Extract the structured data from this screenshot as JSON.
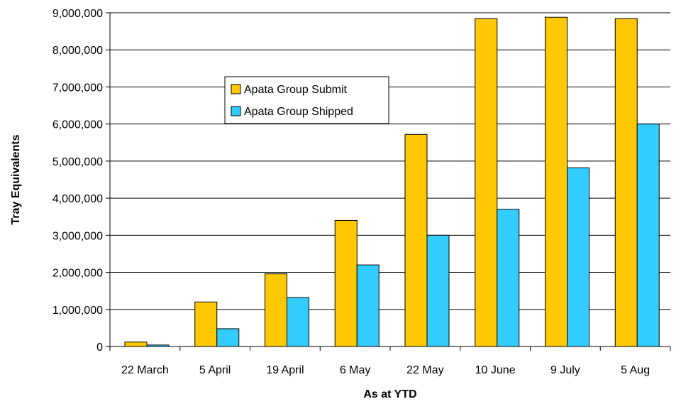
{
  "chart_data": {
    "type": "bar",
    "title": "",
    "xlabel": "As at YTD",
    "ylabel": "Tray Equivalents",
    "categories": [
      "22 March",
      "5 April",
      "19 April",
      "6 May",
      "22 May",
      "10 June",
      "9 July",
      "5 Aug"
    ],
    "series": [
      {
        "name": "Apata Group Submit",
        "color": "#FFC800",
        "values": [
          120000,
          1200000,
          1960000,
          3400000,
          5720000,
          8840000,
          8880000,
          8840000
        ]
      },
      {
        "name": "Apata Group Shipped",
        "color": "#33CCFF",
        "values": [
          40000,
          480000,
          1320000,
          2200000,
          3000000,
          3700000,
          4820000,
          6000000
        ]
      }
    ],
    "ylim": [
      0,
      9000000
    ],
    "yticks": [
      0,
      1000000,
      2000000,
      3000000,
      4000000,
      5000000,
      6000000,
      7000000,
      8000000,
      9000000
    ],
    "ytick_labels": [
      "0",
      "1,000,000",
      "2,000,000",
      "3,000,000",
      "4,000,000",
      "5,000,000",
      "6,000,000",
      "7,000,000",
      "8,000,000",
      "9,000,000"
    ],
    "grid": true,
    "legend_position": "upper-left inside plot"
  }
}
